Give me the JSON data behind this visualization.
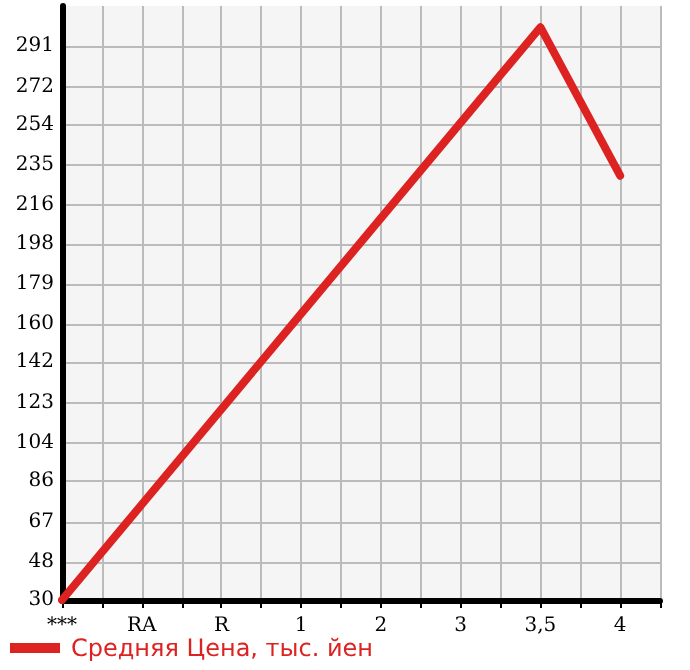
{
  "chart_data": {
    "type": "line",
    "categories": [
      "***",
      "RA",
      "R",
      "1",
      "2",
      "3",
      "3,5",
      "4"
    ],
    "series": [
      {
        "name": "Средняя Цена, тыс. йен",
        "color": "#dd2222",
        "values": [
          30,
          75,
          120,
          165,
          210,
          255,
          300,
          230
        ]
      }
    ],
    "ylim": [
      30,
      310
    ],
    "yticks": [
      30,
      48,
      67,
      86,
      104,
      123,
      142,
      160,
      179,
      198,
      216,
      235,
      254,
      272,
      291
    ],
    "grid": true,
    "legend": "bottom left",
    "marker": "none",
    "line_style": "solid"
  }
}
